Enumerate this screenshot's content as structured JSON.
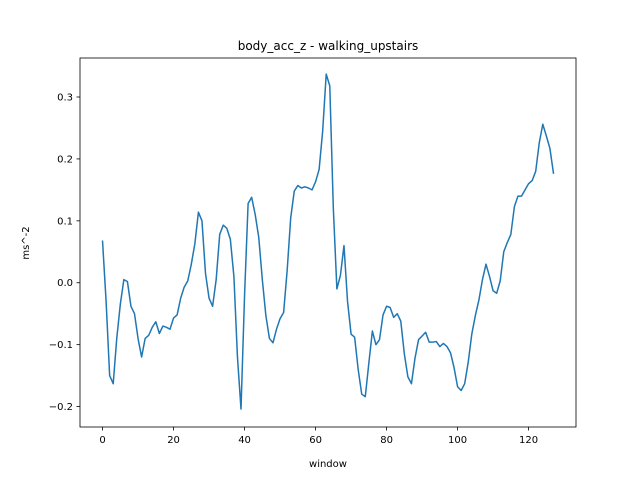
{
  "chart_data": {
    "type": "line",
    "title": "body_acc_z - walking_upstairs",
    "xlabel": "window",
    "ylabel": "ms^-2",
    "xlim": [
      -6.35,
      133.35
    ],
    "ylim": [
      -0.233,
      0.363
    ],
    "xticks": [
      0,
      20,
      40,
      60,
      80,
      100,
      120
    ],
    "yticks": [
      -0.2,
      -0.1,
      0.0,
      0.1,
      0.2,
      0.3
    ],
    "xtick_labels": [
      "0",
      "20",
      "40",
      "60",
      "80",
      "100",
      "120"
    ],
    "ytick_labels": [
      "−0.2",
      "−0.1",
      "0.0",
      "0.1",
      "0.2",
      "0.3"
    ],
    "grid": false,
    "color": "#1f77b4",
    "series": [
      {
        "x": [
          0,
          1,
          2,
          3,
          4,
          5,
          6,
          7,
          8,
          9,
          10,
          11,
          12,
          13,
          14,
          15,
          16,
          17,
          18,
          19,
          20,
          21,
          22,
          23,
          24,
          25,
          26,
          27,
          28,
          29,
          30,
          31,
          32,
          33,
          34,
          35,
          36,
          37,
          38,
          39,
          40,
          41,
          42,
          43,
          44,
          45,
          46,
          47,
          48,
          49,
          50,
          51,
          52,
          53,
          54,
          55,
          56,
          57,
          58,
          59,
          60,
          61,
          62,
          63,
          64,
          65,
          66,
          67,
          68,
          69,
          70,
          71,
          72,
          73,
          74,
          75,
          76,
          77,
          78,
          79,
          80,
          81,
          82,
          83,
          84,
          85,
          86,
          87,
          88,
          89,
          90,
          91,
          92,
          93,
          94,
          95,
          96,
          97,
          98,
          99,
          100,
          101,
          102,
          103,
          104,
          105,
          106,
          107,
          108,
          109,
          110,
          111,
          112,
          113,
          114,
          115,
          116,
          117,
          118,
          119,
          120,
          121,
          122,
          123,
          124,
          125,
          126,
          127
        ],
        "values": [
          0.067,
          -0.03,
          -0.15,
          -0.163,
          -0.09,
          -0.035,
          0.005,
          0.002,
          -0.038,
          -0.05,
          -0.09,
          -0.12,
          -0.09,
          -0.085,
          -0.072,
          -0.063,
          -0.082,
          -0.07,
          -0.072,
          -0.075,
          -0.057,
          -0.052,
          -0.025,
          -0.007,
          0.003,
          0.03,
          0.063,
          0.114,
          0.1,
          0.015,
          -0.025,
          -0.038,
          0.005,
          0.078,
          0.093,
          0.088,
          0.07,
          0.01,
          -0.12,
          -0.204,
          -0.02,
          0.128,
          0.138,
          0.11,
          0.073,
          0.005,
          -0.053,
          -0.09,
          -0.097,
          -0.075,
          -0.058,
          -0.048,
          0.02,
          0.105,
          0.148,
          0.157,
          0.153,
          0.155,
          0.153,
          0.15,
          0.163,
          0.183,
          0.245,
          0.337,
          0.318,
          0.12,
          -0.01,
          0.012,
          0.06,
          -0.03,
          -0.083,
          -0.088,
          -0.14,
          -0.18,
          -0.184,
          -0.13,
          -0.078,
          -0.1,
          -0.092,
          -0.052,
          -0.038,
          -0.04,
          -0.056,
          -0.05,
          -0.062,
          -0.115,
          -0.152,
          -0.163,
          -0.122,
          -0.092,
          -0.086,
          -0.08,
          -0.096,
          -0.096,
          -0.095,
          -0.103,
          -0.098,
          -0.103,
          -0.113,
          -0.137,
          -0.168,
          -0.174,
          -0.163,
          -0.128,
          -0.083,
          -0.053,
          -0.028,
          0.005,
          0.03,
          0.01,
          -0.013,
          -0.017,
          0.003,
          0.05,
          0.065,
          0.078,
          0.123,
          0.14,
          0.14,
          0.15,
          0.16,
          0.165,
          0.18,
          0.226,
          0.256,
          0.237,
          0.217,
          0.177
        ]
      }
    ]
  }
}
